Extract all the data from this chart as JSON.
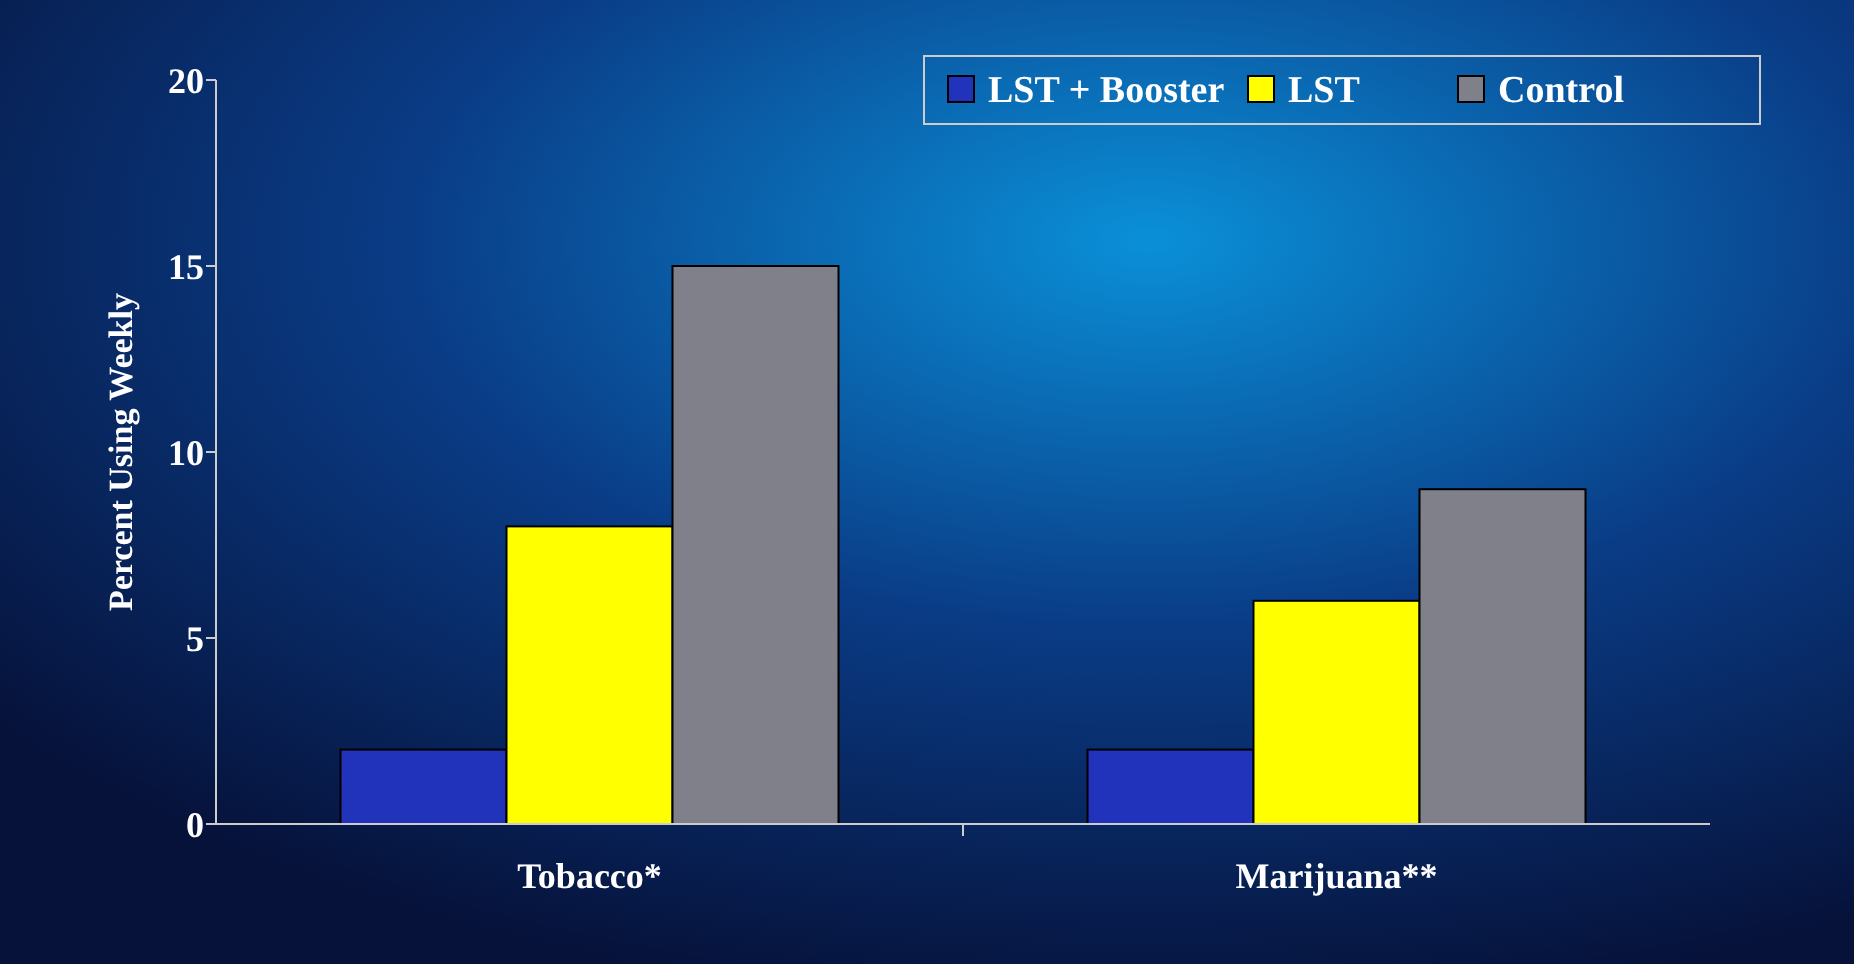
{
  "chart_data": {
    "type": "bar",
    "ylabel": "Percent Using Weekly",
    "categories": [
      "Tobacco*",
      "Marijuana**"
    ],
    "series": [
      {
        "name": "LST + Booster",
        "color": "#2233bb",
        "values": [
          2,
          2
        ]
      },
      {
        "name": "LST",
        "color": "#ffff00",
        "values": [
          8,
          6
        ]
      },
      {
        "name": "Control",
        "color": "#7f8089",
        "values": [
          15,
          9
        ]
      }
    ],
    "ylim": [
      0,
      20
    ],
    "yticks": [
      0,
      5,
      10,
      15,
      20
    ],
    "grid": false,
    "legend": "top right"
  }
}
